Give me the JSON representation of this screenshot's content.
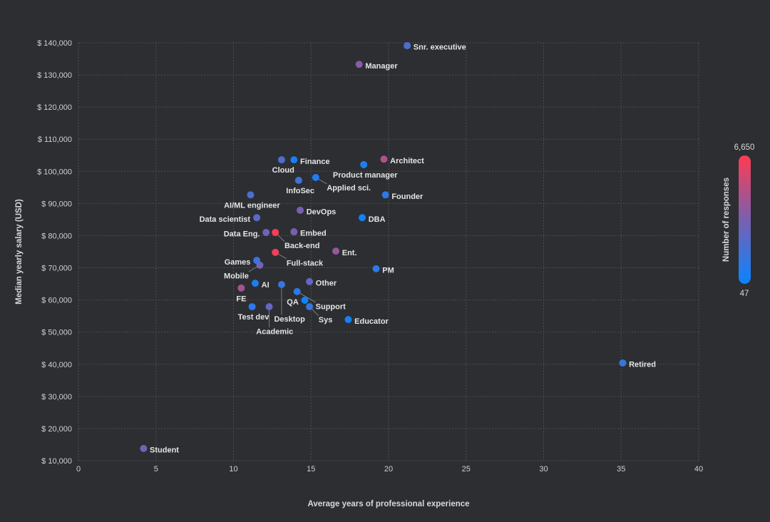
{
  "chart_data": {
    "type": "scatter",
    "xlabel": "Average years of professional experience",
    "ylabel": "Median yearly salary (USD)",
    "xlim": [
      0,
      40
    ],
    "ylim": [
      10000,
      140000
    ],
    "x_ticks": [
      0,
      5,
      10,
      15,
      20,
      25,
      30,
      35,
      40
    ],
    "y_ticks": [
      10000,
      20000,
      30000,
      40000,
      50000,
      60000,
      70000,
      80000,
      90000,
      100000,
      110000,
      120000,
      130000,
      140000
    ],
    "y_tick_labels": [
      "$ 10,000",
      "$ 20,000",
      "$ 30,000",
      "$ 40,000",
      "$ 50,000",
      "$ 60,000",
      "$ 70,000",
      "$ 80,000",
      "$ 90,000",
      "$ 100,000",
      "$ 110,000",
      "$ 120,000",
      "$ 130,000",
      "$ 140,000"
    ],
    "grid": true,
    "colorbar": {
      "title": "Number of responses",
      "min": 47,
      "max": 6650,
      "min_label": "47",
      "max_label": "6,650",
      "colors": [
        "#0a84ff",
        "#7a5fb0",
        "#ff3b52"
      ],
      "placement": "right"
    },
    "points": [
      {
        "label": "Snr. executive",
        "x": 21.2,
        "y": 139100,
        "responses": 2030
      },
      {
        "label": "Manager",
        "x": 18.1,
        "y": 133300,
        "responses": 3680
      },
      {
        "label": "Architect",
        "x": 19.7,
        "y": 103800,
        "responses": 4670
      },
      {
        "label": "Product manager",
        "x": 18.4,
        "y": 102100,
        "responses": 710
      },
      {
        "label": "Founder",
        "x": 19.8,
        "y": 92700,
        "responses": 1040
      },
      {
        "label": "Finance",
        "x": 13.9,
        "y": 103600,
        "responses": 380
      },
      {
        "label": "Cloud",
        "x": 13.1,
        "y": 103600,
        "responses": 2030
      },
      {
        "label": "Applied sci.",
        "x": 15.3,
        "y": 98100,
        "responses": 710
      },
      {
        "label": "InfoSec",
        "x": 14.2,
        "y": 97200,
        "responses": 1700
      },
      {
        "label": "AI/ML engineer",
        "x": 11.1,
        "y": 92700,
        "responses": 2030
      },
      {
        "label": "DevOps",
        "x": 14.3,
        "y": 87900,
        "responses": 3350
      },
      {
        "label": "DBA",
        "x": 18.3,
        "y": 85600,
        "responses": 380
      },
      {
        "label": "Data scientist",
        "x": 11.5,
        "y": 85600,
        "responses": 2360
      },
      {
        "label": "Data Eng.",
        "x": 12.1,
        "y": 81000,
        "responses": 3020
      },
      {
        "label": "Embed",
        "x": 13.9,
        "y": 81200,
        "responses": 3350
      },
      {
        "label": "Back-end",
        "x": 12.7,
        "y": 81000,
        "responses": 6650
      },
      {
        "label": "Full-stack",
        "x": 12.7,
        "y": 74800,
        "responses": 6320
      },
      {
        "label": "Ent.",
        "x": 16.6,
        "y": 75200,
        "responses": 4010
      },
      {
        "label": "PM",
        "x": 19.2,
        "y": 69700,
        "responses": 1040
      },
      {
        "label": "Games",
        "x": 11.5,
        "y": 72300,
        "responses": 1370
      },
      {
        "label": "Mobile",
        "x": 11.7,
        "y": 70800,
        "responses": 3020
      },
      {
        "label": "Other",
        "x": 14.9,
        "y": 65700,
        "responses": 2690
      },
      {
        "label": "AI",
        "x": 11.4,
        "y": 65200,
        "responses": 710
      },
      {
        "label": "FE",
        "x": 10.5,
        "y": 63700,
        "responses": 4340
      },
      {
        "label": "Desktop",
        "x": 13.1,
        "y": 64800,
        "responses": 1370
      },
      {
        "label": "Support",
        "x": 14.1,
        "y": 62600,
        "responses": 1040
      },
      {
        "label": "QA",
        "x": 14.6,
        "y": 59900,
        "responses": 180
      },
      {
        "label": "Sys",
        "x": 14.9,
        "y": 57900,
        "responses": 1370
      },
      {
        "label": "Test dev",
        "x": 11.2,
        "y": 57900,
        "responses": 1040
      },
      {
        "label": "Academic",
        "x": 12.3,
        "y": 57900,
        "responses": 2690
      },
      {
        "label": "Educator",
        "x": 17.4,
        "y": 53900,
        "responses": 380
      },
      {
        "label": "Retired",
        "x": 35.1,
        "y": 40400,
        "responses": 1370
      },
      {
        "label": "Student",
        "x": 4.2,
        "y": 13800,
        "responses": 3020
      }
    ]
  }
}
